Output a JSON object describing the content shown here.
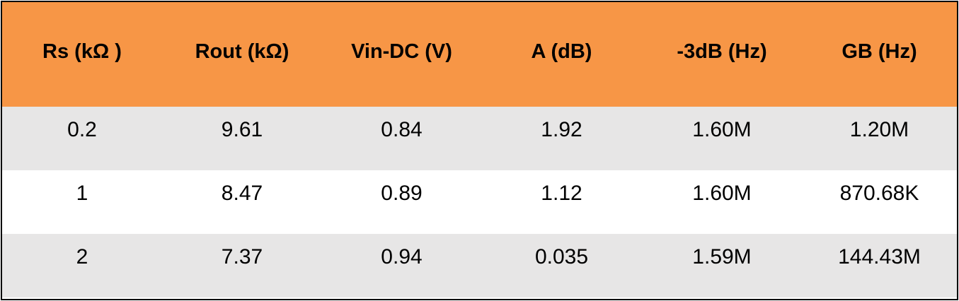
{
  "colors": {
    "header_bg": "#f79646",
    "band_bg": "#e7e6e6",
    "white_bg": "#ffffff",
    "border": "#000000"
  },
  "table": {
    "headers": [
      "Rs (kΩ )",
      "Rout (kΩ)",
      "Vin-DC (V)",
      "A (dB)",
      "-3dB (Hz)",
      "GB (Hz)"
    ],
    "rows": [
      [
        "0.2",
        "9.61",
        "0.84",
        "1.92",
        "1.60M",
        "1.20M"
      ],
      [
        "1",
        "8.47",
        "0.89",
        "1.12",
        "1.60M",
        "870.68K"
      ],
      [
        "2",
        "7.37",
        "0.94",
        "0.035",
        "1.59M",
        "144.43M"
      ]
    ]
  }
}
